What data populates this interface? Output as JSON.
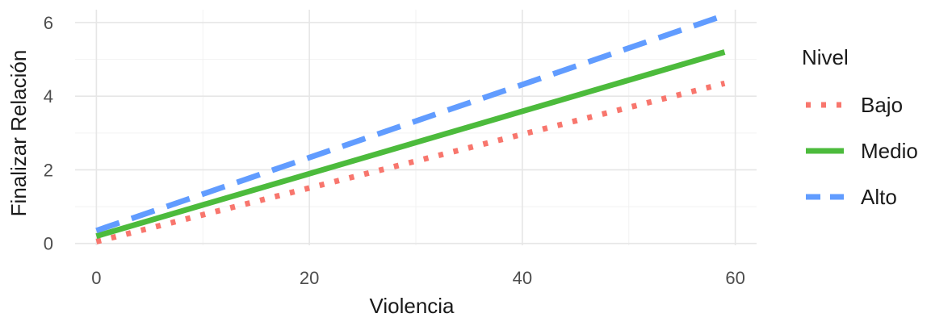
{
  "chart_data": {
    "type": "line",
    "xlabel": "Violencia",
    "ylabel": "Finalizar Relación",
    "xlim": [
      -2,
      62
    ],
    "ylim": [
      -0.05,
      6.35
    ],
    "x_ticks": [
      0,
      20,
      40,
      60
    ],
    "y_ticks": [
      0,
      2,
      4,
      6
    ],
    "x_tick_labels": [
      "0",
      "20",
      "40",
      "60"
    ],
    "y_tick_labels": [
      "0",
      "2",
      "4",
      "6"
    ],
    "grid": true,
    "legend": {
      "title": "Nivel",
      "position": "right"
    },
    "series": [
      {
        "name": "Bajo",
        "color": "#F8766D",
        "linestyle": "dotted",
        "x": [
          0,
          59
        ],
        "y": [
          0.05,
          4.35
        ]
      },
      {
        "name": "Medio",
        "color": "#4CBB3C",
        "linestyle": "solid",
        "x": [
          0,
          59
        ],
        "y": [
          0.2,
          5.2
        ]
      },
      {
        "name": "Alto",
        "color": "#619CFF",
        "linestyle": "dashed",
        "x": [
          0,
          59
        ],
        "y": [
          0.35,
          6.2
        ]
      }
    ]
  }
}
